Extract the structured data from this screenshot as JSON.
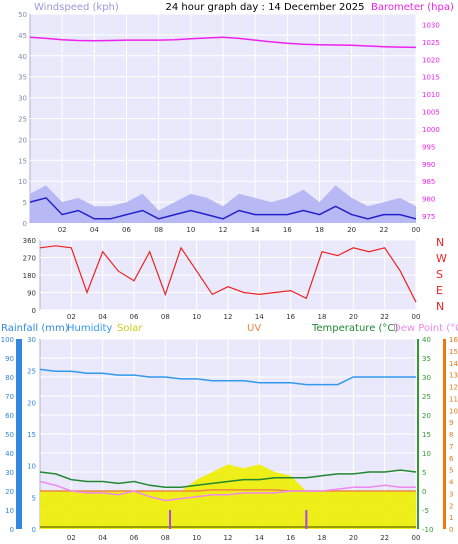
{
  "header": {
    "title": "24 hour graph day : 14 December 2025",
    "windspeed_label": "Windspeed (kph)",
    "barometer_label": "Barometer (hpa)"
  },
  "legend": {
    "rainfall": "Rainfall (mm)",
    "humidity": "Humidity",
    "solar": "Solar",
    "uv": "UV",
    "temperature": "Temperature (°C)",
    "dew_point": "Dew Point (°C)"
  },
  "colors": {
    "plot_bg": "#e9e9fb",
    "grid": "#ffffff",
    "wind_avg": "#2222cc",
    "wind_gust": "#b8b8f4",
    "barometer": "#ee22ee",
    "direction": "#ee2222",
    "humidity": "#3399ee",
    "temperature": "#228833",
    "dew_point": "#ee88ee",
    "solar": "#eeee00",
    "uv": "#ee8844",
    "rain_axis": "#3388dd",
    "uv_axis": "#ee7711",
    "temp_axis": "#339933",
    "sun_marker": "#aa44ee"
  },
  "x_ticks": [
    "02",
    "04",
    "06",
    "08",
    "10",
    "12",
    "14",
    "16",
    "18",
    "20",
    "22",
    "00"
  ],
  "wind_axis": [
    "0",
    "5",
    "10",
    "15",
    "20",
    "25",
    "30",
    "35",
    "40",
    "45",
    "50"
  ],
  "baro_axis": [
    "975",
    "980",
    "985",
    "990",
    "995",
    "1000",
    "1005",
    "1010",
    "1015",
    "1020",
    "1025",
    "1030"
  ],
  "dir_axis": [
    "0",
    "90",
    "180",
    "270",
    "360"
  ],
  "compass": [
    "N",
    "W",
    "S",
    "E",
    "N"
  ],
  "hum_axis": [
    "0",
    "10",
    "20",
    "30",
    "40",
    "50",
    "60",
    "70",
    "80",
    "90",
    "100"
  ],
  "rain_axis": [
    "0",
    "5",
    "10",
    "15",
    "20",
    "25",
    "30"
  ],
  "temp_axis": [
    "-10",
    "-5",
    "0",
    "5",
    "10",
    "15",
    "20",
    "25",
    "30",
    "35",
    "40"
  ],
  "uv_axis": [
    "0",
    "1",
    "2",
    "3",
    "4",
    "5",
    "6",
    "7",
    "8",
    "9",
    "10",
    "11",
    "12",
    "13",
    "14",
    "15",
    "16"
  ],
  "chart_data": [
    {
      "type": "line",
      "title": "24 hour graph day : 14 December 2025",
      "xlabel": "",
      "x": [
        0,
        1,
        2,
        3,
        4,
        5,
        6,
        7,
        8,
        9,
        10,
        11,
        12,
        13,
        14,
        15,
        16,
        17,
        18,
        19,
        20,
        21,
        22,
        23,
        24
      ],
      "x_tick_labels": [
        "02",
        "04",
        "06",
        "08",
        "10",
        "12",
        "14",
        "16",
        "18",
        "20",
        "22",
        "00"
      ],
      "ylabel": "Windspeed (kph)",
      "ylim": [
        0,
        50
      ],
      "y2label": "Barometer (hpa)",
      "y2lim": [
        973,
        1033
      ],
      "series": [
        {
          "axis": "wind",
          "values": [
            5,
            6,
            2,
            3,
            1,
            1,
            2,
            3,
            1,
            2,
            3,
            2,
            1,
            3,
            2,
            2,
            2,
            3,
            2,
            4,
            2,
            1,
            2,
            2,
            1
          ]
        },
        {
          "axis": "wind",
          "values": [
            7,
            9,
            5,
            6,
            4,
            4,
            5,
            7,
            3,
            5,
            7,
            6,
            4,
            7,
            6,
            5,
            6,
            8,
            5,
            9,
            6,
            4,
            5,
            6,
            4
          ]
        },
        {
          "axis": "barometer",
          "values": [
            1026.3,
            1026.0,
            1025.6,
            1025.4,
            1025.3,
            1025.4,
            1025.5,
            1025.5,
            1025.5,
            1025.6,
            1025.9,
            1026.1,
            1026.3,
            1026.0,
            1025.5,
            1025.0,
            1024.6,
            1024.3,
            1024.2,
            1024.1,
            1024.0,
            1023.8,
            1023.6,
            1023.5,
            1023.4
          ]
        }
      ],
      "grid": true
    },
    {
      "type": "line",
      "xlabel": "",
      "ylabel": "",
      "ylim": [
        0,
        360
      ],
      "x": [
        0,
        1,
        2,
        3,
        4,
        5,
        6,
        7,
        8,
        9,
        10,
        11,
        12,
        13,
        14,
        15,
        16,
        17,
        18,
        19,
        20,
        21,
        22,
        23,
        24
      ],
      "series": [
        {
          "values": [
            320,
            330,
            320,
            90,
            300,
            200,
            150,
            300,
            80,
            320,
            200,
            80,
            120,
            90,
            80,
            90,
            100,
            60,
            300,
            280,
            320,
            300,
            320,
            200,
            40
          ]
        }
      ],
      "grid": true
    },
    {
      "type": "line",
      "xlabel": "",
      "ylabel": "Humidity",
      "ylim": [
        0,
        100
      ],
      "y2label": "Temperature (°C)",
      "y2lim": [
        -10,
        40
      ],
      "y3label": "Dew Point (°C)",
      "x": [
        0,
        1,
        2,
        3,
        4,
        5,
        6,
        7,
        8,
        9,
        10,
        11,
        12,
        13,
        14,
        15,
        16,
        17,
        18,
        19,
        20,
        21,
        22,
        23,
        24
      ],
      "series": [
        {
          "axis": "humidity",
          "values": [
            84,
            83,
            83,
            82,
            82,
            81,
            81,
            80,
            80,
            79,
            79,
            78,
            78,
            78,
            77,
            77,
            77,
            76,
            76,
            76,
            80,
            80,
            80,
            80,
            80
          ]
        },
        {
          "axis": "temperature",
          "values": [
            5,
            4.5,
            3,
            2.5,
            2.5,
            2,
            2.5,
            1.5,
            1,
            1,
            1.5,
            2,
            2.5,
            3,
            3,
            3.5,
            3.5,
            3.5,
            4,
            4.5,
            4.5,
            5,
            5,
            5.5,
            5
          ]
        },
        {
          "axis": "temperature",
          "values": [
            2.5,
            1.5,
            0,
            -0.5,
            -0.5,
            -1,
            0,
            -1.5,
            -2.5,
            -2,
            -1.5,
            -1,
            -1,
            -0.5,
            -0.5,
            -0.5,
            0,
            0,
            0,
            0.5,
            1,
            1,
            1.5,
            1,
            1
          ]
        },
        {
          "axis": "solar",
          "values": [
            0,
            0,
            0,
            0,
            0,
            0,
            0,
            0,
            0,
            0,
            3,
            5,
            7,
            6,
            7,
            5,
            4,
            0,
            0,
            0,
            0,
            0,
            0,
            0,
            0
          ]
        },
        {
          "axis": "uv",
          "values": [
            0,
            0,
            0,
            0,
            0,
            0,
            0,
            0,
            0,
            0,
            0,
            0.3,
            0.3,
            0.3,
            0.3,
            0.3,
            0,
            0,
            0,
            0,
            0,
            0,
            0,
            0,
            0
          ]
        }
      ],
      "grid": true
    }
  ]
}
